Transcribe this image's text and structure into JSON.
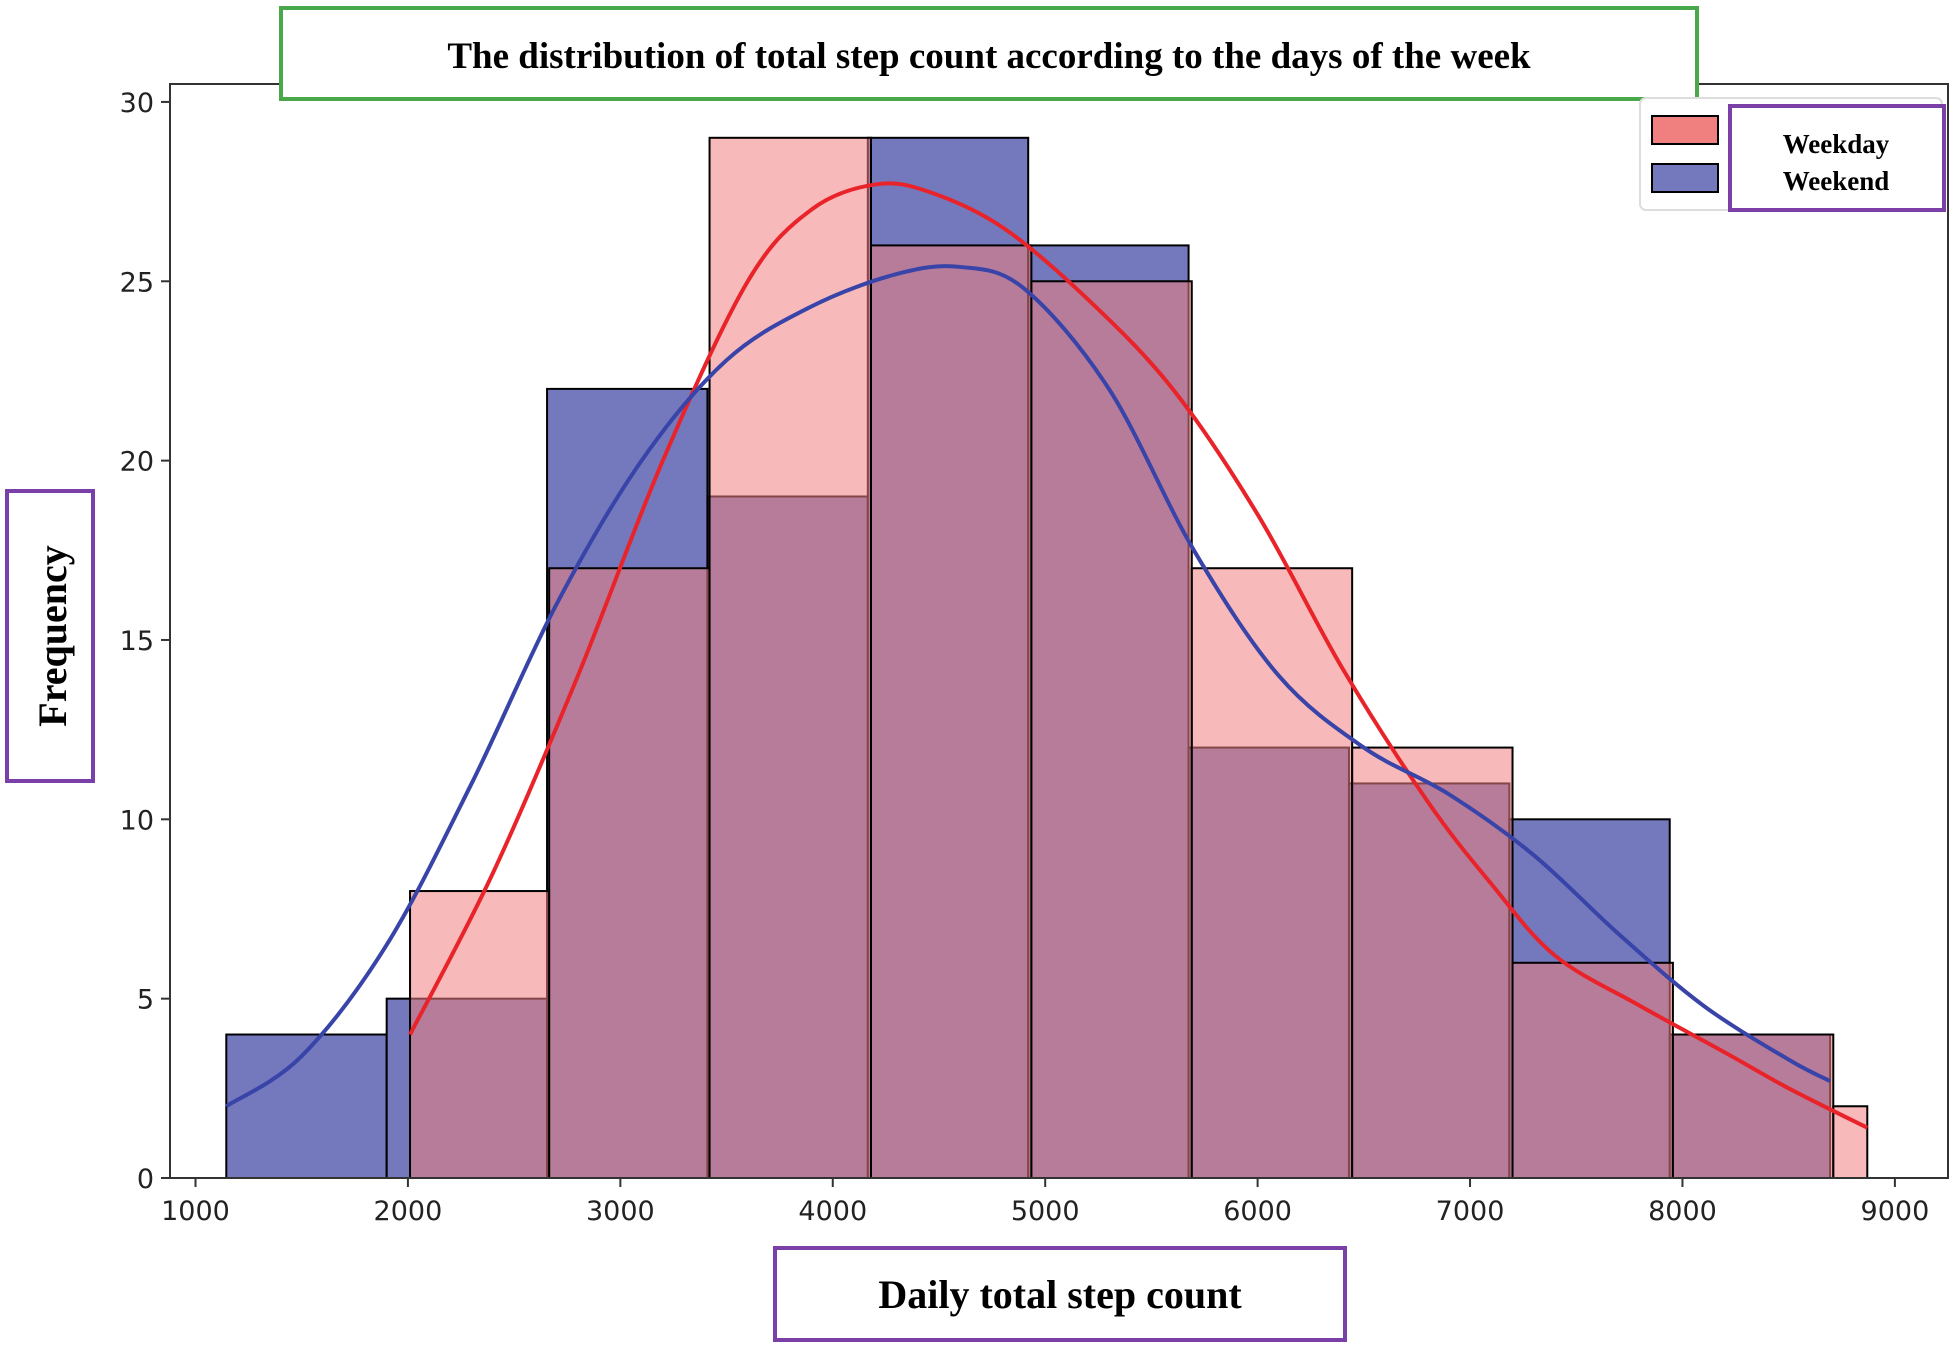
{
  "chart_data": {
    "type": "bar",
    "title": "The distribution of total step count according to the days of the week",
    "xlabel": "Daily total step count",
    "ylabel": "Frequency",
    "xlim": [
      880,
      9250
    ],
    "ylim": [
      0,
      30.5
    ],
    "xticks": [
      1000,
      2000,
      3000,
      4000,
      5000,
      6000,
      7000,
      8000,
      9000
    ],
    "yticks": [
      0,
      5,
      10,
      15,
      20,
      25,
      30
    ],
    "xtick_labels": [
      "1000",
      "2000",
      "3000",
      "4000",
      "5000",
      "6000",
      "7000",
      "8000",
      "9000"
    ],
    "ytick_labels": [
      "0",
      "5",
      "10",
      "15",
      "20",
      "25",
      "30"
    ],
    "legend_position": "top-right",
    "grid": false,
    "series": [
      {
        "name": "Weekday",
        "color": "#f08080",
        "line_color": "#e8242a",
        "bin_edges": [
          2010,
          2665,
          3420,
          4180,
          4935,
          5690,
          6445,
          7200,
          7955,
          8710,
          8870
        ],
        "counts": [
          8,
          17,
          29,
          26,
          25,
          17,
          12,
          6,
          4,
          2
        ],
        "kde": {
          "x": [
            2010,
            2400,
            2800,
            3200,
            3600,
            3900,
            4200,
            4450,
            4800,
            5200,
            5600,
            6000,
            6400,
            6800,
            7100,
            7400,
            7800,
            8200,
            8500,
            8870
          ],
          "y": [
            4,
            8.5,
            14,
            20,
            25,
            27,
            27.7,
            27.5,
            26.5,
            24.5,
            22,
            18.5,
            14.2,
            10.5,
            8.2,
            6.2,
            4.8,
            3.5,
            2.5,
            1.4
          ]
        }
      },
      {
        "name": "Weekend",
        "color": "#7478bd",
        "line_color": "#3944a8",
        "bin_edges": [
          1145,
          1900,
          2655,
          3410,
          4165,
          4920,
          5675,
          6430,
          7185,
          7940,
          8695
        ],
        "counts": [
          4,
          5,
          22,
          19,
          29,
          26,
          12,
          11,
          10,
          4
        ],
        "kde": {
          "x": [
            1145,
            1500,
            1900,
            2300,
            2700,
            3100,
            3500,
            3900,
            4300,
            4600,
            4900,
            5300,
            5700,
            6100,
            6500,
            6900,
            7300,
            7700,
            8100,
            8500,
            8695
          ],
          "y": [
            2,
            3.4,
            6.5,
            11,
            16,
            20,
            22.8,
            24.3,
            25.2,
            25.4,
            24.8,
            22,
            17.5,
            14,
            12,
            10.7,
            9,
            6.8,
            4.8,
            3.3,
            2.7
          ]
        }
      }
    ]
  }
}
